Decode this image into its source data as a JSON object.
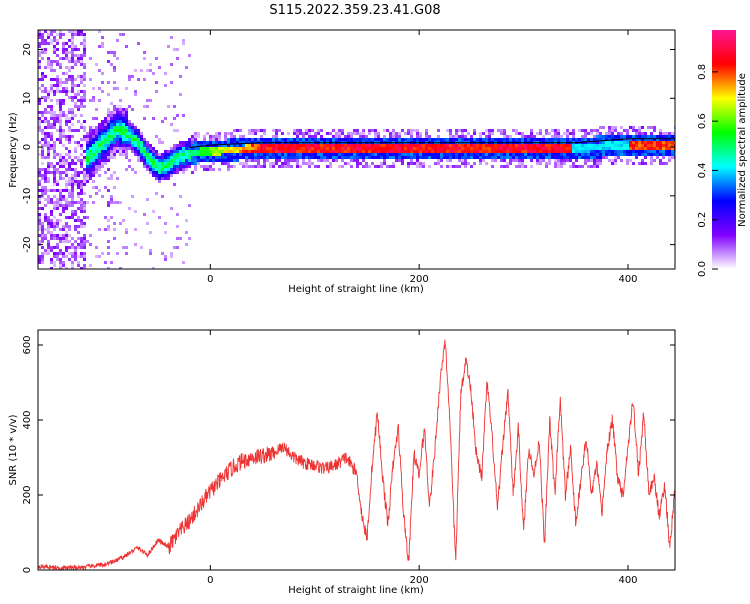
{
  "figure": {
    "title": "S115.2022.359.23.41.G08"
  },
  "chart_data": [
    {
      "type": "heatmap",
      "xlabel": "Height of straight line (km)",
      "ylabel": "Frequency (Hz)",
      "xlim": [
        -165,
        445
      ],
      "ylim": [
        -25,
        24
      ],
      "xticks": [
        0,
        200,
        400
      ],
      "yticks": [
        -20,
        -10,
        0,
        10,
        20
      ],
      "ridge": {
        "x": [
          -120,
          -110,
          -100,
          -90,
          -80,
          -70,
          -60,
          -50,
          -40,
          -30,
          -20,
          0,
          50,
          100,
          200,
          300,
          350,
          400,
          445
        ],
        "y": [
          -2,
          0,
          2,
          4,
          3,
          1,
          -2,
          -4,
          -3,
          -1.5,
          -1,
          -0.5,
          0,
          0,
          0,
          0,
          0,
          0.8,
          0.8
        ]
      },
      "colorbar": {
        "label": "Normalized spectral amplitude",
        "ticks": [
          0.0,
          0.2,
          0.4,
          0.6,
          0.8
        ],
        "range": [
          0,
          0.97
        ],
        "colors": [
          "#ffffff",
          "#8000ff",
          "#0000ff",
          "#00ffff",
          "#00ff00",
          "#ffff00",
          "#ff0000",
          "#ff1493"
        ]
      }
    },
    {
      "type": "line",
      "xlabel": "Height of straight line (km)",
      "ylabel": "SNR (10 * v/v)",
      "xlim": [
        -165,
        445
      ],
      "ylim": [
        0,
        640
      ],
      "xticks": [
        0,
        200,
        400
      ],
      "yticks": [
        0,
        200,
        400,
        600
      ],
      "color": "#ee3333",
      "series": [
        {
          "x": [
            -165,
            -140,
            -120,
            -100,
            -90,
            -80,
            -70,
            -60,
            -50,
            -40,
            -30,
            -20,
            -10,
            0,
            10,
            20,
            30,
            40,
            50,
            60,
            70,
            80,
            90,
            100,
            110,
            120,
            130,
            140,
            145,
            150,
            155,
            160,
            165,
            170,
            175,
            180,
            185,
            190,
            195,
            200,
            205,
            210,
            215,
            220,
            225,
            230,
            235,
            240,
            245,
            250,
            255,
            260,
            265,
            270,
            275,
            280,
            285,
            290,
            295,
            300,
            305,
            310,
            315,
            320,
            325,
            330,
            335,
            340,
            345,
            350,
            355,
            360,
            365,
            370,
            375,
            380,
            385,
            390,
            395,
            400,
            405,
            410,
            415,
            420,
            425,
            430,
            435,
            440,
            445
          ],
          "y": [
            10,
            5,
            8,
            15,
            25,
            40,
            60,
            40,
            80,
            60,
            100,
            130,
            170,
            210,
            240,
            270,
            290,
            300,
            305,
            310,
            330,
            300,
            285,
            280,
            270,
            280,
            300,
            260,
            150,
            80,
            280,
            420,
            250,
            120,
            280,
            380,
            150,
            20,
            310,
            250,
            380,
            170,
            320,
            500,
            620,
            350,
            20,
            480,
            560,
            470,
            300,
            250,
            500,
            350,
            160,
            330,
            480,
            200,
            380,
            100,
            330,
            250,
            350,
            60,
            400,
            200,
            460,
            200,
            320,
            120,
            250,
            350,
            200,
            280,
            150,
            320,
            400,
            250,
            200,
            330,
            460,
            250,
            420,
            200,
            250,
            140,
            230,
            60,
            220
          ]
        }
      ]
    }
  ]
}
